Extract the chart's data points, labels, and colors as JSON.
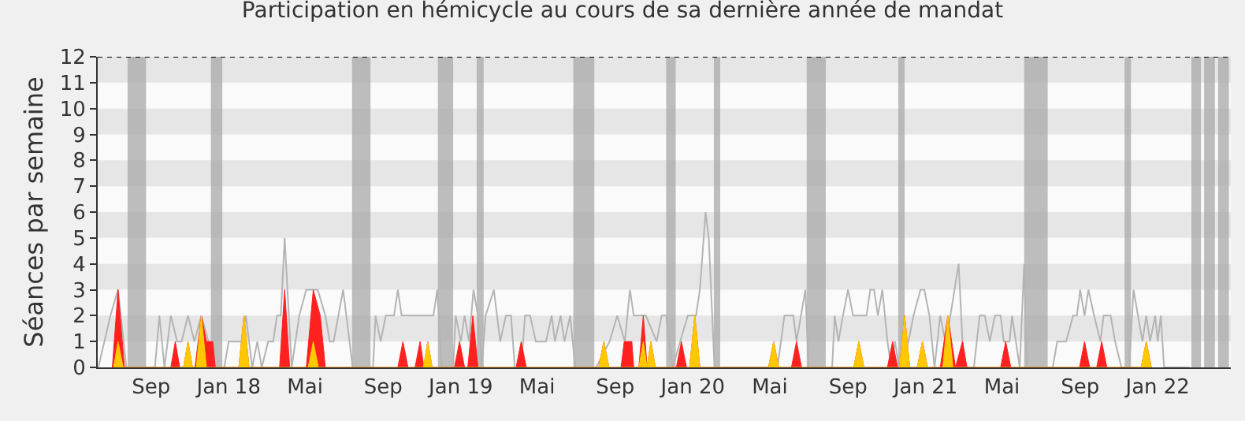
{
  "chart_data": {
    "type": "area",
    "title": "Participation en hémicycle au cours de sa dernière année de mandat",
    "ylabel": "Séances par semaine",
    "xlim": [
      "2017-06-09",
      "2022-04-26"
    ],
    "xticks": [
      {
        "value": "2017-09-01",
        "label": "Sep"
      },
      {
        "value": "2018-01-01",
        "label": "Jan 18"
      },
      {
        "value": "2018-05-01",
        "label": "Mai"
      },
      {
        "value": "2018-09-01",
        "label": "Sep"
      },
      {
        "value": "2019-01-01",
        "label": "Jan 19"
      },
      {
        "value": "2019-05-01",
        "label": "Mai"
      },
      {
        "value": "2019-09-01",
        "label": "Sep"
      },
      {
        "value": "2020-01-01",
        "label": "Jan 20"
      },
      {
        "value": "2020-05-01",
        "label": "Mai"
      },
      {
        "value": "2020-09-01",
        "label": "Sep"
      },
      {
        "value": "2021-01-01",
        "label": "Jan 21"
      },
      {
        "value": "2021-05-01",
        "label": "Mai"
      },
      {
        "value": "2021-09-01",
        "label": "Sep"
      },
      {
        "value": "2022-01-01",
        "label": "Jan 22"
      }
    ],
    "ylim": [
      0,
      12
    ],
    "yticks": [
      0,
      1,
      2,
      3,
      4,
      5,
      6,
      7,
      8,
      9,
      10,
      11,
      12
    ],
    "grid": false,
    "marker": "none",
    "bands": [
      {
        "axis": "y",
        "from": 1,
        "to": 2,
        "color": "#e6e6e6"
      },
      {
        "axis": "y",
        "from": 3,
        "to": 4,
        "color": "#e6e6e6"
      },
      {
        "axis": "y",
        "from": 5,
        "to": 6,
        "color": "#e6e6e6"
      },
      {
        "axis": "y",
        "from": 7,
        "to": 8,
        "color": "#e6e6e6"
      },
      {
        "axis": "y",
        "from": 9,
        "to": 10,
        "color": "#e6e6e6"
      },
      {
        "axis": "y",
        "from": 11,
        "to": 12,
        "color": "#e6e6e6"
      },
      {
        "axis": "x",
        "from": "2017-07-26",
        "to": "2017-08-24",
        "color": "#a8a8a8"
      },
      {
        "axis": "x",
        "from": "2017-12-04",
        "to": "2017-12-22",
        "color": "#a8a8a8"
      },
      {
        "axis": "x",
        "from": "2018-07-14",
        "to": "2018-08-12",
        "color": "#a8a8a8"
      },
      {
        "axis": "x",
        "from": "2018-11-26",
        "to": "2018-12-20",
        "color": "#a8a8a8"
      },
      {
        "axis": "x",
        "from": "2019-01-26",
        "to": "2019-02-06",
        "color": "#a8a8a8"
      },
      {
        "axis": "x",
        "from": "2019-06-27",
        "to": "2019-07-30",
        "color": "#a8a8a8"
      },
      {
        "axis": "x",
        "from": "2019-11-20",
        "to": "2019-12-05",
        "color": "#a8a8a8"
      },
      {
        "axis": "x",
        "from": "2020-02-03",
        "to": "2020-02-13",
        "color": "#a8a8a8"
      },
      {
        "axis": "x",
        "from": "2020-06-28",
        "to": "2020-07-28",
        "color": "#a8a8a8"
      },
      {
        "axis": "x",
        "from": "2020-11-19",
        "to": "2020-11-29",
        "color": "#a8a8a8"
      },
      {
        "axis": "x",
        "from": "2021-06-05",
        "to": "2021-07-12",
        "color": "#a8a8a8"
      },
      {
        "axis": "x",
        "from": "2021-11-10",
        "to": "2021-11-20",
        "color": "#a8a8a8"
      },
      {
        "axis": "x",
        "from": "2022-02-23",
        "to": "2022-03-10",
        "color": "#a8a8a8"
      },
      {
        "axis": "x",
        "from": "2022-03-15",
        "to": "2022-04-01",
        "color": "#a8a8a8"
      },
      {
        "axis": "x",
        "from": "2022-04-06",
        "to": "2022-04-23",
        "color": "#a8a8a8"
      }
    ],
    "ref_lines": [
      {
        "axis": "y",
        "value": 12,
        "color": "#000000",
        "line_style": "dotted"
      }
    ],
    "series": [
      {
        "type": "line",
        "color": "#b4b4b4",
        "x": [
          "2017-06-10",
          "2017-06-29",
          "2017-07-11",
          "2017-07-24",
          "2017-09-07",
          "2017-09-14",
          "2017-09-22",
          "2017-10-02",
          "2017-10-12",
          "2017-10-19",
          "2017-10-29",
          "2017-11-08",
          "2017-11-19",
          "2017-11-30",
          "2017-12-11",
          "2017-12-25",
          "2018-01-01",
          "2018-01-21",
          "2018-01-28",
          "2018-02-07",
          "2018-02-15",
          "2018-02-22",
          "2018-03-04",
          "2018-03-12",
          "2018-03-18",
          "2018-03-24",
          "2018-03-30",
          "2018-04-10",
          "2018-04-22",
          "2018-05-03",
          "2018-05-21",
          "2018-06-02",
          "2018-06-09",
          "2018-06-15",
          "2018-06-30",
          "2018-07-10",
          "2018-07-15",
          "2018-08-16",
          "2018-08-20",
          "2018-08-28",
          "2018-09-05",
          "2018-09-18",
          "2018-09-24",
          "2018-09-30",
          "2018-11-19",
          "2018-11-25",
          "2018-12-02",
          "2018-12-20",
          "2018-12-24",
          "2019-01-01",
          "2019-01-07",
          "2019-01-14",
          "2019-01-21",
          "2019-01-28",
          "2019-02-03",
          "2019-02-09",
          "2019-02-22",
          "2019-03-04",
          "2019-03-13",
          "2019-03-21",
          "2019-03-27",
          "2019-04-06",
          "2019-04-12",
          "2019-04-20",
          "2019-04-29",
          "2019-05-15",
          "2019-05-24",
          "2019-05-29",
          "2019-06-07",
          "2019-06-13",
          "2019-06-22",
          "2019-06-30",
          "2019-08-02",
          "2019-08-23",
          "2019-09-04",
          "2019-09-16",
          "2019-09-24",
          "2019-09-30",
          "2019-10-19",
          "2019-11-05",
          "2019-11-13",
          "2019-11-20",
          "2019-11-30",
          "2019-12-12",
          "2019-12-24",
          "2020-01-06",
          "2020-01-12",
          "2020-01-21",
          "2020-01-26",
          "2020-02-04",
          "2020-05-13",
          "2020-05-24",
          "2020-06-07",
          "2020-06-12",
          "2020-06-26",
          "2020-07-01",
          "2020-08-07",
          "2020-08-11",
          "2020-08-17",
          "2020-08-24",
          "2020-09-01",
          "2020-09-09",
          "2020-09-30",
          "2020-10-06",
          "2020-10-12",
          "2020-10-18",
          "2020-10-25",
          "2020-11-02",
          "2020-11-08",
          "2020-11-14",
          "2020-11-20",
          "2020-12-05",
          "2020-12-13",
          "2020-12-24",
          "2020-12-30",
          "2021-01-07",
          "2021-01-15",
          "2021-01-24",
          "2021-02-01",
          "2021-02-09",
          "2021-02-22",
          "2021-02-28",
          "2021-03-06",
          "2021-03-18",
          "2021-03-27",
          "2021-04-04",
          "2021-04-12",
          "2021-04-20",
          "2021-04-29",
          "2021-05-04",
          "2021-05-13",
          "2021-05-17",
          "2021-05-23",
          "2021-05-29",
          "2021-06-05",
          "2021-06-09",
          "2021-07-20",
          "2021-07-27",
          "2021-08-10",
          "2021-08-21",
          "2021-08-27",
          "2021-09-01",
          "2021-09-08",
          "2021-09-14",
          "2021-09-23",
          "2021-10-03",
          "2021-10-08",
          "2021-10-19",
          "2021-10-26",
          "2021-11-05",
          "2021-11-17",
          "2021-11-24",
          "2021-12-01",
          "2021-12-08",
          "2021-12-14",
          "2021-12-20",
          "2021-12-28",
          "2022-01-01",
          "2022-01-06",
          "2022-01-11",
          "2022-02-20"
        ],
        "values": [
          0,
          2,
          3,
          0,
          0,
          2,
          0,
          2,
          1,
          1,
          2,
          1,
          2,
          1,
          0,
          0,
          1,
          1,
          2,
          0,
          1,
          0,
          1,
          1,
          2,
          2,
          5,
          0,
          2,
          3,
          3,
          2,
          1,
          1,
          3,
          1,
          0,
          0,
          2,
          1,
          2,
          2,
          3,
          2,
          2,
          3,
          0,
          0,
          2,
          1,
          2,
          1,
          3,
          2,
          0,
          2,
          3,
          1,
          2,
          2,
          0,
          0,
          2,
          2,
          1,
          1,
          2,
          1,
          2,
          1,
          2,
          0,
          0,
          1,
          2,
          1,
          3,
          2,
          2,
          1,
          2,
          2,
          0,
          1,
          2,
          2,
          3,
          6,
          5,
          0,
          0,
          2,
          2,
          1,
          3,
          0,
          0,
          2,
          1,
          2,
          3,
          2,
          2,
          3,
          3,
          2,
          3,
          1,
          0,
          1,
          0,
          1,
          2,
          3,
          3,
          2,
          0,
          2,
          1,
          2,
          4,
          1,
          0,
          0,
          2,
          2,
          1,
          2,
          2,
          1,
          1,
          2,
          1,
          0,
          4,
          0,
          0,
          1,
          1,
          2,
          2,
          3,
          2,
          3,
          2,
          1,
          2,
          2,
          1,
          0,
          0,
          3,
          2,
          1,
          2,
          1,
          2,
          1,
          2,
          0,
          0
        ]
      },
      {
        "color": "#ff2020",
        "x": [
          "2017-07-02",
          "2017-07-11",
          "2017-07-21",
          "2017-10-02",
          "2017-10-09",
          "2017-10-16",
          "2017-10-22",
          "2017-10-29",
          "2017-11-05",
          "2017-11-09",
          "2017-11-19",
          "2017-11-27",
          "2017-12-07",
          "2017-12-11",
          "2018-01-17",
          "2018-01-25",
          "2018-02-02",
          "2018-03-22",
          "2018-03-30",
          "2018-04-07",
          "2018-05-03",
          "2018-05-14",
          "2018-05-25",
          "2018-06-02",
          "2018-09-24",
          "2018-10-02",
          "2018-10-10",
          "2018-10-21",
          "2018-10-29",
          "2018-11-04",
          "2018-11-10",
          "2018-11-17",
          "2018-12-22",
          "2018-12-30",
          "2019-01-07",
          "2019-01-12",
          "2019-01-20",
          "2019-01-28",
          "2019-03-29",
          "2019-04-06",
          "2019-04-14",
          "2019-08-06",
          "2019-08-14",
          "2019-08-22",
          "2019-09-10",
          "2019-09-15",
          "2019-09-27",
          "2019-09-30",
          "2019-10-08",
          "2019-10-15",
          "2019-10-21",
          "2019-10-27",
          "2019-11-03",
          "2019-12-06",
          "2019-12-14",
          "2019-12-22",
          "2019-12-27",
          "2020-01-04",
          "2020-01-12",
          "2020-04-29",
          "2020-05-07",
          "2020-05-15",
          "2020-06-04",
          "2020-06-12",
          "2020-06-20",
          "2020-09-10",
          "2020-09-18",
          "2020-09-26",
          "2020-11-02",
          "2020-11-10",
          "2020-11-18",
          "2020-11-21",
          "2020-11-29",
          "2020-12-07",
          "2020-12-19",
          "2020-12-27",
          "2021-01-04",
          "2021-01-24",
          "2021-02-05",
          "2021-02-17",
          "2021-02-28",
          "2021-03-07",
          "2021-04-29",
          "2021-05-07",
          "2021-05-15",
          "2021-08-31",
          "2021-09-08",
          "2021-09-16",
          "2021-09-27",
          "2021-10-05",
          "2021-10-13",
          "2021-12-06",
          "2021-12-14",
          "2021-12-22"
        ],
        "values": [
          0,
          3,
          0,
          0,
          1,
          0,
          0,
          1,
          0,
          0,
          2,
          1,
          1,
          0,
          0,
          2,
          0,
          0,
          3,
          0,
          0,
          3,
          2,
          0,
          0,
          1,
          0,
          0,
          1,
          0,
          1,
          0,
          0,
          1,
          0,
          0,
          2,
          0,
          0,
          1,
          0,
          0,
          1,
          0,
          0,
          1,
          1,
          0,
          0,
          2,
          0,
          1,
          0,
          0,
          1,
          0,
          0,
          2,
          0,
          0,
          1,
          0,
          0,
          1,
          0,
          0,
          1,
          0,
          0,
          1,
          0,
          0,
          2,
          0,
          0,
          1,
          0,
          0,
          2,
          0,
          1,
          0,
          0,
          1,
          0,
          0,
          1,
          0,
          0,
          1,
          0,
          0,
          1,
          0
        ]
      },
      {
        "color": "#ffc800",
        "x": [
          "2017-07-04",
          "2017-07-11",
          "2017-07-19",
          "2017-10-22",
          "2017-10-29",
          "2017-11-05",
          "2017-11-11",
          "2017-11-19",
          "2017-11-27",
          "2018-01-17",
          "2018-01-25",
          "2018-02-02",
          "2018-05-06",
          "2018-05-14",
          "2018-05-22",
          "2018-11-03",
          "2018-11-10",
          "2018-11-17",
          "2019-08-06",
          "2019-08-14",
          "2019-08-22",
          "2019-10-08",
          "2019-10-15",
          "2019-10-21",
          "2019-10-27",
          "2019-11-03",
          "2019-12-27",
          "2020-01-04",
          "2020-01-12",
          "2020-04-29",
          "2020-05-07",
          "2020-05-15",
          "2020-09-10",
          "2020-09-18",
          "2020-09-26",
          "2020-11-21",
          "2020-11-29",
          "2020-12-07",
          "2020-12-19",
          "2020-12-27",
          "2021-01-04",
          "2021-01-28",
          "2021-02-05",
          "2021-02-13",
          "2021-12-06",
          "2021-12-14",
          "2021-12-22"
        ],
        "values": [
          0,
          1,
          0,
          0,
          1,
          0,
          0,
          2,
          0,
          0,
          2,
          0,
          0,
          1,
          0,
          0,
          1,
          0,
          0,
          1,
          0,
          0,
          1,
          0,
          1,
          0,
          0,
          2,
          0,
          0,
          1,
          0,
          0,
          1,
          0,
          0,
          2,
          0,
          0,
          1,
          0,
          0,
          2,
          0,
          0,
          1,
          0
        ]
      }
    ]
  }
}
